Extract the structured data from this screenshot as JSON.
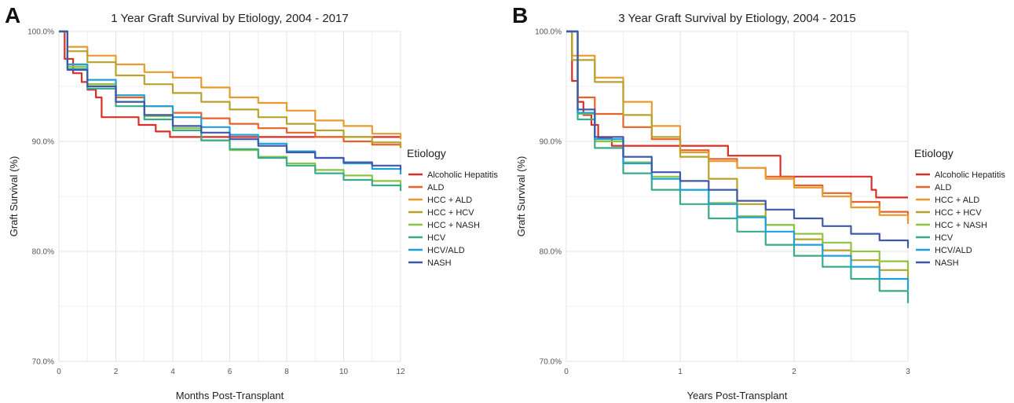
{
  "chart_data": [
    {
      "panel_label": "A",
      "type": "line",
      "step": true,
      "title": "1 Year Graft Survival by Etiology, 2004 - 2017",
      "xlabel": "Months Post-Transplant",
      "ylabel": "Graft Survival (%)",
      "xlim": [
        0,
        12
      ],
      "ylim": [
        70,
        100
      ],
      "xticks": [
        0,
        2,
        4,
        6,
        8,
        10,
        12
      ],
      "xtick_labels": [
        "0",
        "2",
        "4",
        "6",
        "8",
        "10",
        "12"
      ],
      "yticks": [
        70,
        80,
        90,
        100
      ],
      "ytick_labels": [
        "70.0%",
        "80.0%",
        "90.0%",
        "100.0%"
      ],
      "grid": true,
      "legend": {
        "title": "Etiology",
        "position": "right"
      },
      "series": [
        {
          "name": "Alcoholic Hepatitis",
          "color": "#d73027",
          "x": [
            0,
            0.2,
            0.5,
            0.8,
            1.0,
            1.3,
            1.5,
            2.2,
            2.8,
            3.4,
            3.9,
            4.6,
            5.5,
            12
          ],
          "y": [
            100,
            97.5,
            96.2,
            95.4,
            94.7,
            94.0,
            92.2,
            92.2,
            91.5,
            90.9,
            90.4,
            90.4,
            90.4,
            90.4
          ]
        },
        {
          "name": "ALD",
          "color": "#e8622a",
          "x": [
            0,
            0.3,
            1,
            2,
            3,
            4,
            5,
            6,
            7,
            8,
            9,
            10,
            11,
            12
          ],
          "y": [
            100,
            97.0,
            95.2,
            94.0,
            93.2,
            92.6,
            92.1,
            91.6,
            91.2,
            90.8,
            90.4,
            90.0,
            89.7,
            89.4
          ]
        },
        {
          "name": "HCC + ALD",
          "color": "#e89a2e",
          "x": [
            0,
            0.3,
            1,
            2,
            3,
            4,
            5,
            6,
            7,
            8,
            9,
            10,
            11,
            12
          ],
          "y": [
            100,
            98.6,
            97.8,
            97.0,
            96.3,
            95.8,
            94.9,
            94.0,
            93.5,
            92.8,
            91.9,
            91.4,
            90.7,
            90.2
          ]
        },
        {
          "name": "HCC + HCV",
          "color": "#b7a22c",
          "x": [
            0,
            0.3,
            1,
            2,
            3,
            4,
            5,
            6,
            7,
            8,
            9,
            10,
            11,
            12
          ],
          "y": [
            100,
            98.2,
            97.2,
            96.0,
            95.2,
            94.4,
            93.6,
            92.9,
            92.2,
            91.6,
            91.0,
            90.4,
            89.9,
            89.4
          ]
        },
        {
          "name": "HCC + NASH",
          "color": "#8cc540",
          "x": [
            0,
            0.3,
            1,
            2,
            3,
            4,
            5,
            6,
            7,
            8,
            9,
            10,
            11,
            12
          ],
          "y": [
            100,
            96.8,
            95.2,
            93.6,
            92.3,
            91.2,
            90.1,
            89.2,
            88.6,
            88.0,
            87.4,
            86.9,
            86.4,
            85.9
          ]
        },
        {
          "name": "HCV",
          "color": "#3aaa8c",
          "x": [
            0,
            0.3,
            1,
            2,
            3,
            4,
            5,
            6,
            7,
            8,
            9,
            10,
            11,
            12
          ],
          "y": [
            100,
            96.6,
            94.8,
            93.2,
            92.0,
            91.0,
            90.1,
            89.3,
            88.5,
            87.8,
            87.1,
            86.5,
            86.0,
            85.5
          ]
        },
        {
          "name": "HCV/ALD",
          "color": "#1fa0dc",
          "x": [
            0,
            0.3,
            1,
            2,
            3,
            4,
            5,
            6,
            7,
            8,
            9,
            10,
            11,
            12
          ],
          "y": [
            100,
            97.0,
            95.6,
            94.2,
            93.2,
            92.2,
            91.3,
            90.6,
            89.8,
            89.1,
            88.5,
            88.0,
            87.5,
            87.0
          ]
        },
        {
          "name": "NASH",
          "color": "#3f58a8",
          "x": [
            0,
            0.3,
            1,
            2,
            3,
            4,
            5,
            6,
            7,
            8,
            9,
            10,
            11,
            12
          ],
          "y": [
            100,
            96.5,
            95.0,
            93.6,
            92.4,
            91.4,
            90.8,
            90.2,
            89.6,
            89.0,
            88.5,
            88.1,
            87.8,
            87.4
          ]
        }
      ]
    },
    {
      "panel_label": "B",
      "type": "line",
      "step": true,
      "title": "3 Year Graft Survival by Etiology, 2004 - 2015",
      "xlabel": "Years Post-Transplant",
      "ylabel": "Graft Survival (%)",
      "xlim": [
        0,
        3
      ],
      "ylim": [
        70,
        100
      ],
      "xticks": [
        0,
        1,
        2,
        3
      ],
      "xtick_labels": [
        "0",
        "1",
        "2",
        "3"
      ],
      "yticks": [
        70,
        80,
        90,
        100
      ],
      "ytick_labels": [
        "70.0%",
        "80.0%",
        "90.0%",
        "100.0%"
      ],
      "grid": true,
      "legend": {
        "title": "Etiology",
        "position": "right"
      },
      "series": [
        {
          "name": "Alcoholic Hepatitis",
          "color": "#d73027",
          "x": [
            0,
            0.05,
            0.1,
            0.15,
            0.22,
            0.28,
            0.4,
            0.9,
            1.42,
            1.88,
            2.65,
            2.68,
            2.72,
            3.0
          ],
          "y": [
            100,
            95.5,
            93.6,
            92.4,
            91.5,
            90.3,
            89.6,
            89.6,
            88.7,
            86.8,
            86.8,
            85.6,
            84.9,
            84.9
          ]
        },
        {
          "name": "ALD",
          "color": "#e8622a",
          "x": [
            0,
            0.1,
            0.25,
            0.5,
            0.75,
            1.0,
            1.25,
            1.5,
            1.75,
            2.0,
            2.25,
            2.5,
            2.75,
            3.0
          ],
          "y": [
            100,
            94.0,
            92.5,
            91.3,
            90.2,
            89.2,
            88.4,
            87.6,
            86.8,
            86.0,
            85.3,
            84.5,
            83.6,
            82.8
          ]
        },
        {
          "name": "HCC + ALD",
          "color": "#e89a2e",
          "x": [
            0,
            0.05,
            0.25,
            0.5,
            0.75,
            1.0,
            1.25,
            1.5,
            1.75,
            2.0,
            2.25,
            2.5,
            2.75,
            3.0
          ],
          "y": [
            100,
            97.8,
            95.8,
            93.6,
            91.4,
            89.0,
            88.2,
            87.6,
            86.6,
            85.8,
            85.0,
            84.0,
            83.3,
            82.5
          ]
        },
        {
          "name": "HCC + HCV",
          "color": "#b7a22c",
          "x": [
            0,
            0.05,
            0.25,
            0.5,
            0.75,
            1.0,
            1.25,
            1.5,
            1.75,
            2.0,
            2.25,
            2.5,
            2.75,
            3.0
          ],
          "y": [
            100,
            97.4,
            95.4,
            92.4,
            90.4,
            88.6,
            86.6,
            84.3,
            82.4,
            81.1,
            80.1,
            79.2,
            78.3,
            77.3
          ]
        },
        {
          "name": "HCC + NASH",
          "color": "#8cc540",
          "x": [
            0,
            0.1,
            0.25,
            0.5,
            0.75,
            1.0,
            1.25,
            1.5,
            1.75,
            2.0,
            2.25,
            2.5,
            2.75,
            3.0
          ],
          "y": [
            100,
            92.5,
            90.0,
            88.1,
            86.8,
            85.6,
            84.4,
            83.2,
            82.4,
            81.6,
            80.8,
            80.0,
            79.1,
            78.3
          ]
        },
        {
          "name": "HCV",
          "color": "#3aaa8c",
          "x": [
            0,
            0.1,
            0.25,
            0.5,
            0.75,
            1.0,
            1.25,
            1.5,
            1.75,
            2.0,
            2.25,
            2.5,
            2.75,
            3.0
          ],
          "y": [
            100,
            92.0,
            89.4,
            87.1,
            85.6,
            84.3,
            83.0,
            81.8,
            80.6,
            79.6,
            78.6,
            77.5,
            76.4,
            75.3
          ]
        },
        {
          "name": "HCV/ALD",
          "color": "#1fa0dc",
          "x": [
            0,
            0.1,
            0.25,
            0.5,
            0.75,
            1.0,
            1.25,
            1.5,
            1.75,
            2.0,
            2.25,
            2.5,
            2.75,
            3.0
          ],
          "y": [
            100,
            92.6,
            90.2,
            88.0,
            86.6,
            85.6,
            84.3,
            83.1,
            81.8,
            80.6,
            79.6,
            78.6,
            77.5,
            76.5
          ]
        },
        {
          "name": "NASH",
          "color": "#3f58a8",
          "x": [
            0,
            0.1,
            0.25,
            0.5,
            0.75,
            1.0,
            1.25,
            1.5,
            1.75,
            2.0,
            2.25,
            2.5,
            2.75,
            3.0
          ],
          "y": [
            100,
            92.9,
            90.4,
            88.6,
            87.2,
            86.4,
            85.6,
            84.6,
            83.8,
            83.0,
            82.3,
            81.6,
            81.0,
            80.3
          ]
        }
      ]
    }
  ]
}
